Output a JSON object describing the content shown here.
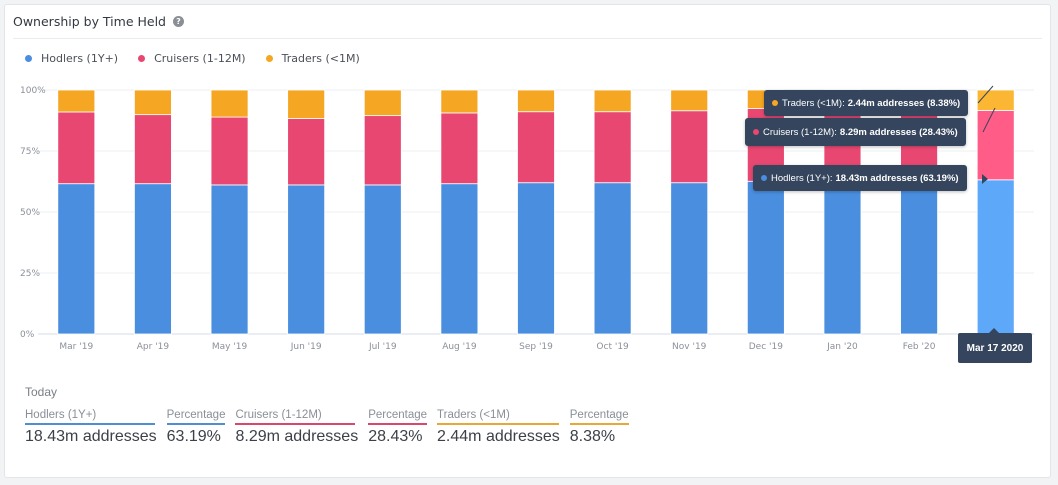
{
  "card": {
    "title": "Ownership by Time Held",
    "help_icon": "question-circle-icon"
  },
  "legend": [
    {
      "label": "Hodlers (1Y+)",
      "color": "#4a8ee0"
    },
    {
      "label": "Cruisers (1-12M)",
      "color": "#e84771"
    },
    {
      "label": "Traders (<1M)",
      "color": "#f5a623"
    }
  ],
  "chart_data": {
    "type": "bar",
    "stacked": true,
    "title": "Ownership by Time Held",
    "xlabel": "",
    "ylabel": "",
    "ylim": [
      0,
      100
    ],
    "yticks": [
      "0%",
      "25%",
      "50%",
      "75%",
      "100%"
    ],
    "grid": true,
    "legend_position": "top-left",
    "categories": [
      "Mar '19",
      "Apr '19",
      "May '19",
      "Jun '19",
      "Jul '19",
      "Aug '19",
      "Sep '19",
      "Oct '19",
      "Nov '19",
      "Dec '19",
      "Jan '20",
      "Feb '20",
      "Mar 17 2020"
    ],
    "tick_labels": [
      "Mar '19",
      "Apr '19",
      "May '19",
      "Jun '19",
      "Jul '19",
      "Aug '19",
      "Sep '19",
      "Oct '19",
      "Nov '19",
      "Dec '19",
      "Jan '20",
      "Feb '20",
      ""
    ],
    "series": [
      {
        "name": "Hodlers (1Y+)",
        "color": "#4a8ee0",
        "highlight_color": "#5ea8fa",
        "values": [
          61.6,
          61.6,
          61.1,
          61.1,
          61.1,
          61.6,
          62.0,
          62.0,
          62.0,
          62.6,
          62.8,
          63.0,
          63.19
        ]
      },
      {
        "name": "Cruisers (1-12M)",
        "color": "#e84771",
        "highlight_color": "#ff5c88",
        "values": [
          29.4,
          28.3,
          27.8,
          27.2,
          28.4,
          29.0,
          29.1,
          29.1,
          29.5,
          29.8,
          29.2,
          28.9,
          28.43
        ]
      },
      {
        "name": "Traders (<1M)",
        "color": "#f5a623",
        "highlight_color": "#fbb634",
        "values": [
          9.0,
          10.1,
          11.1,
          11.7,
          10.5,
          9.4,
          8.9,
          8.9,
          8.5,
          7.6,
          8.0,
          8.1,
          8.38
        ]
      }
    ],
    "highlighted_index": 12
  },
  "tooltip": {
    "date": "Mar 17 2020",
    "rows": [
      {
        "series": "Traders (<1M):",
        "value": "2.44m addresses (8.38%)",
        "color": "#f5a623"
      },
      {
        "series": "Cruisers (1-12M):",
        "value": "8.29m addresses (28.43%)",
        "color": "#e84771"
      },
      {
        "series": "Hodlers (1Y+):",
        "value": "18.43m addresses (63.19%)",
        "color": "#4a8ee0"
      }
    ]
  },
  "summary": {
    "heading": "Today",
    "columns": [
      {
        "label": "Hodlers (1Y+)",
        "value": "18.43m addresses",
        "color": "#4f8ed0"
      },
      {
        "label": "Percentage",
        "value": "63.19%",
        "color": "#4f8ed0"
      },
      {
        "label": "Cruisers (1-12M)",
        "value": "8.29m addresses",
        "color": "#d9476f"
      },
      {
        "label": "Percentage",
        "value": "28.43%",
        "color": "#d9476f"
      },
      {
        "label": "Traders (<1M)",
        "value": "2.44m addresses",
        "color": "#e8a838"
      },
      {
        "label": "Percentage",
        "value": "8.38%",
        "color": "#e8a838"
      }
    ]
  }
}
